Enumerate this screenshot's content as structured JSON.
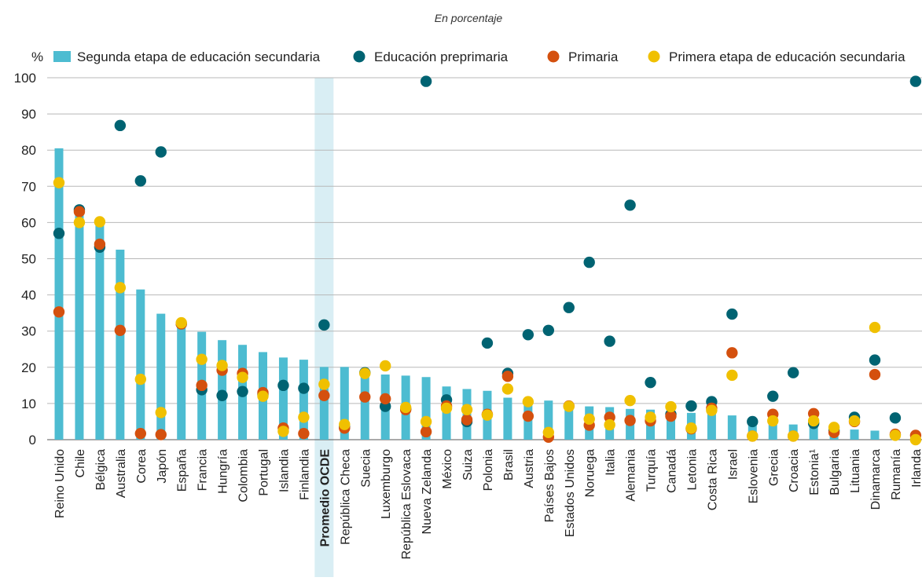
{
  "chart_data": {
    "type": "bar",
    "subtitle": "En porcentaje",
    "ylabel": "%",
    "ylim": [
      0,
      100
    ],
    "yticks": [
      0,
      10,
      20,
      30,
      40,
      50,
      60,
      70,
      80,
      90,
      100
    ],
    "grid": true,
    "legend_position": "top",
    "highlighted_category": "Promedio OCDE",
    "categories": [
      "Reino Unido",
      "Chile",
      "Bélgica",
      "Australia",
      "Corea",
      "Japón",
      "España",
      "Francia",
      "Hungría",
      "Colombia",
      "Portugal",
      "Islandia",
      "Finlandia",
      "Promedio OCDE",
      "República Checa",
      "Suecia",
      "Luxemburgo",
      "República Eslovaca",
      "Nueva Zelanda",
      "México",
      "Suiza",
      "Polonia",
      "Brasil",
      "Austria",
      "Países Bajos",
      "Estados Unidos",
      "Noruega",
      "Italia",
      "Alemania",
      "Turquía",
      "Canadá",
      "Letonia",
      "Costa Rica",
      "Israel",
      "Eslovenia",
      "Grecia",
      "Croacia",
      "Estonia¹",
      "Bulgaria",
      "Lituania",
      "Dinamarca",
      "Rumanía",
      "Irlanda"
    ],
    "series": [
      {
        "name": "Segunda etapa de educación secundaria",
        "kind": "bar",
        "color": "#4dbcd1",
        "values": [
          80.5,
          63,
          60,
          52.5,
          41.5,
          34.8,
          31.5,
          29.8,
          27.5,
          26.2,
          24.2,
          22.7,
          22.1,
          20.1,
          20.1,
          18.8,
          18,
          17.7,
          17.3,
          14.7,
          14,
          13.5,
          11.6,
          10.9,
          10.8,
          9.8,
          9.2,
          9,
          8.5,
          8.3,
          7.8,
          7.4,
          7.1,
          6.7,
          4.6,
          4.5,
          4.2,
          3.5,
          3,
          2.8,
          2.5,
          1.9,
          1.2
        ]
      },
      {
        "name": "Educación preprimaria",
        "kind": "dot",
        "color": "#006372",
        "values": [
          57,
          63.5,
          53.2,
          86.8,
          71.5,
          79.5,
          32,
          13.8,
          12.2,
          13.3,
          12.5,
          15,
          14.2,
          31.7,
          3.5,
          18.5,
          9.2,
          8.5,
          99,
          11,
          5,
          26.7,
          18.3,
          29,
          30.2,
          36.5,
          49,
          27.2,
          64.8,
          15.8,
          7,
          9.3,
          10.5,
          34.7,
          5,
          12,
          18.5,
          4.5,
          2.5,
          6.2,
          22,
          6,
          99
        ]
      },
      {
        "name": "Primaria",
        "kind": "dot",
        "color": "#d4500e",
        "values": [
          35.3,
          63,
          54,
          30.2,
          1.7,
          1.4,
          32,
          15,
          19.2,
          18.3,
          13,
          3.2,
          1.7,
          12.2,
          3.2,
          11.8,
          11.3,
          8.3,
          2.2,
          9.3,
          5.5,
          7,
          17.5,
          6.5,
          0.7,
          9.3,
          4,
          6.2,
          5.3,
          5.2,
          6.5,
          3,
          8.7,
          24,
          1,
          7,
          1,
          7.2,
          2,
          5,
          18,
          1.5,
          1.2
        ]
      },
      {
        "name": "Primera etapa de educación secundaria",
        "kind": "dot",
        "color": "#f0c000",
        "values": [
          71,
          60,
          60.2,
          42,
          16.7,
          7.5,
          32.3,
          22.2,
          20.5,
          17.2,
          12,
          2.3,
          6.2,
          15.3,
          4.2,
          18.3,
          20.4,
          8.9,
          5,
          8.7,
          8.3,
          6.8,
          14,
          10.5,
          2,
          9.2,
          5.7,
          4.1,
          10.8,
          6.2,
          9.1,
          3.2,
          8.1,
          17.8,
          1,
          5.2,
          1,
          5.2,
          3.4,
          5.2,
          31,
          1.2,
          0
        ]
      }
    ]
  }
}
